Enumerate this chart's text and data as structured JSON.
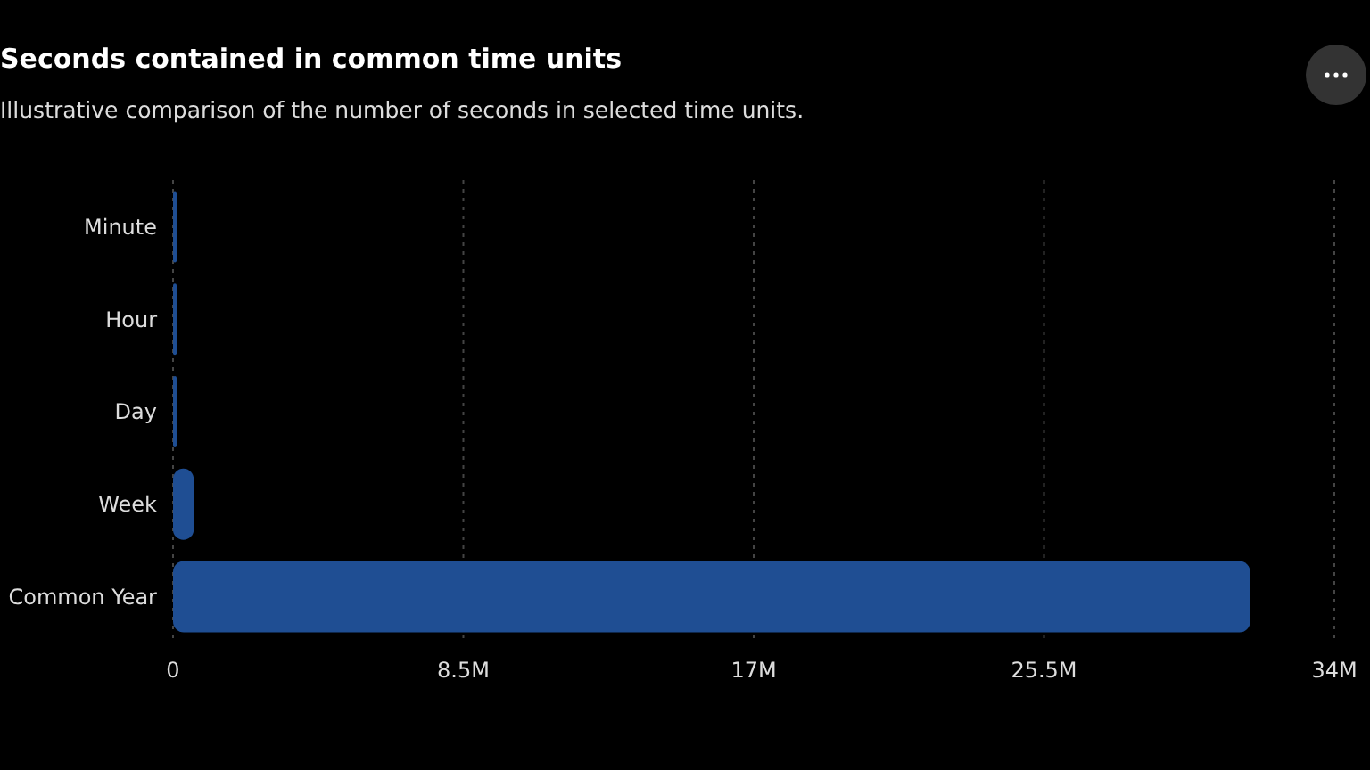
{
  "chart_data": {
    "type": "bar",
    "orientation": "horizontal",
    "title": "Seconds contained in common time units",
    "subtitle": "Illustrative comparison of the number of seconds in selected time units.",
    "categories": [
      "Minute",
      "Hour",
      "Day",
      "Week",
      "Common Year"
    ],
    "values": [
      60,
      3600,
      86400,
      604800,
      31536000
    ],
    "color": "#1f4e93",
    "xlim": [
      0,
      34000000
    ],
    "xticks": [
      0,
      {
        "value": 8500000,
        "label": "8.5M"
      },
      {
        "value": 17000000,
        "label": "17M"
      },
      {
        "value": 25500000,
        "label": "25.5M"
      },
      {
        "value": 34000000,
        "label": "34M"
      }
    ],
    "grid": "x"
  }
}
